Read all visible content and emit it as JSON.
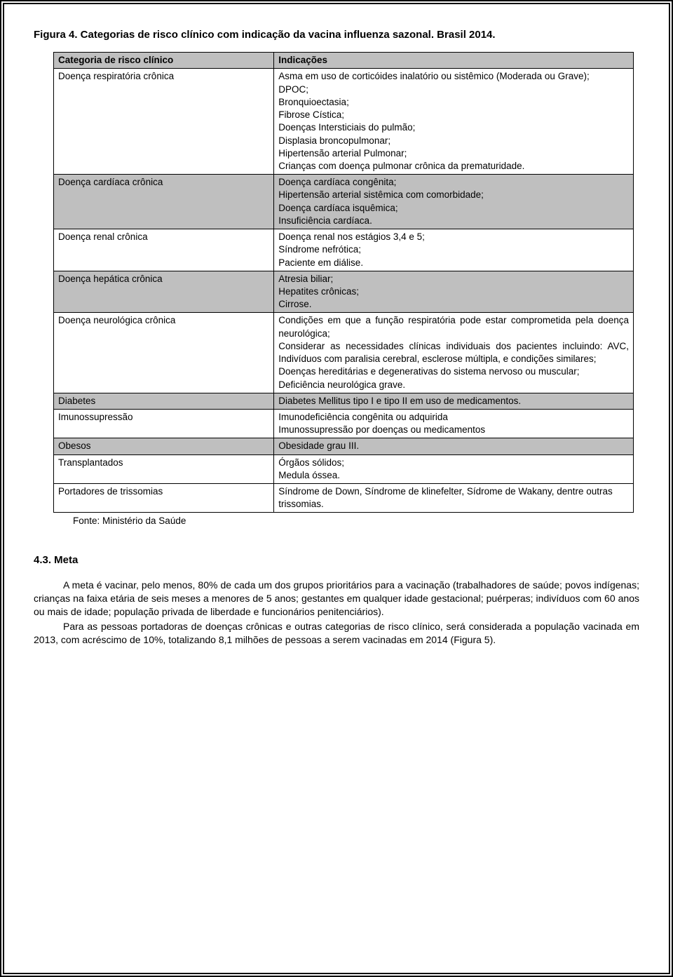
{
  "figure_title": "Figura 4. Categorias de risco clínico com indicação da vacina influenza sazonal. Brasil 2014.",
  "table": {
    "header_left": "Categoria de risco clínico",
    "header_right": "Indicações",
    "rows": [
      {
        "shaded": false,
        "left": "Doença respiratória crônica",
        "right": "Asma em uso de corticóides inalatório ou sistêmico (Moderada ou Grave);\nDPOC;\nBronquioectasia;\nFibrose Cística;\nDoenças Intersticiais do pulmão;\nDisplasia broncopulmonar;\nHipertensão arterial Pulmonar;\nCrianças com doença pulmonar crônica da prematuridade."
      },
      {
        "shaded": true,
        "left": "Doença cardíaca crônica",
        "right": "Doença cardíaca congênita;\nHipertensão arterial sistêmica com comorbidade;\nDoença cardíaca isquêmica;\nInsuficiência cardíaca."
      },
      {
        "shaded": false,
        "left": "Doença renal crônica",
        "right": "Doença renal nos estágios 3,4 e 5;\nSíndrome nefrótica;\nPaciente em diálise."
      },
      {
        "shaded": true,
        "left": "Doença hepática crônica",
        "right": "Atresia biliar;\nHepatites crônicas;\nCirrose."
      },
      {
        "shaded": false,
        "left": "Doença neurológica crônica",
        "right_justify": true,
        "right": "Condições em que a função respiratória pode estar comprometida pela doença neurológica;\nConsiderar as necessidades clínicas individuais dos pacientes incluindo: AVC, Indivíduos com paralisia cerebral, esclerose múltipla, e condições similares;\nDoenças hereditárias e degenerativas do sistema nervoso ou muscular;\nDeficiência neurológica grave."
      },
      {
        "shaded": true,
        "left": "Diabetes",
        "right": "Diabetes Mellitus tipo I e tipo II em uso de medicamentos."
      },
      {
        "shaded": false,
        "left": "Imunossupressão",
        "right": "Imunodeficiência congênita ou adquirida\nImunossupressão por doenças ou medicamentos"
      },
      {
        "shaded": true,
        "left": "Obesos",
        "right": "Obesidade grau III."
      },
      {
        "shaded": false,
        "left": "Transplantados",
        "right": "Órgãos sólidos;\nMedula óssea."
      },
      {
        "shaded": false,
        "left": "Portadores de trissomias",
        "right": "Síndrome de Down, Síndrome de klinefelter, Sídrome de Wakany, dentre outras trissomias."
      }
    ]
  },
  "source": "Fonte: Ministério da Saúde",
  "section_heading": "4.3. Meta",
  "paragraphs": [
    "A meta é vacinar, pelo menos, 80% de cada um dos grupos prioritários para a vacinação (trabalhadores de saúde; povos indígenas; crianças na faixa etária de seis meses a menores de 5 anos; gestantes em qualquer idade gestacional; puérperas; indivíduos com 60 anos ou mais de idade; população privada de liberdade e funcionários penitenciários).",
    "Para as pessoas portadoras de doenças crônicas e outras categorias de risco clínico, será considerada a população vacinada em 2013, com acréscimo de 10%, totalizando 8,1 milhões de pessoas a serem vacinadas em 2014 (Figura 5)."
  ]
}
